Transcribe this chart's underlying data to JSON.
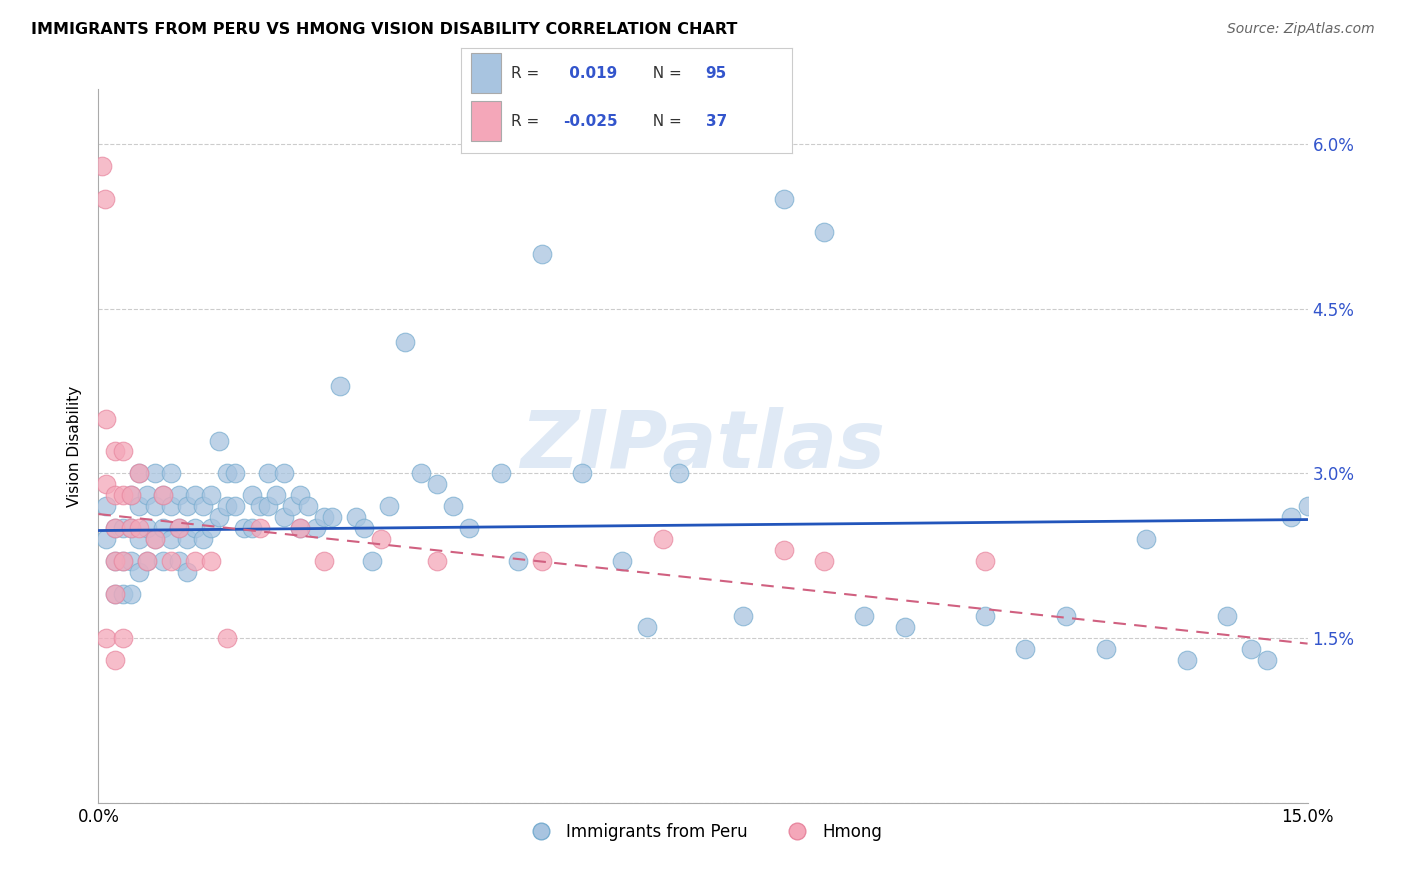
{
  "title": "IMMIGRANTS FROM PERU VS HMONG VISION DISABILITY CORRELATION CHART",
  "source": "Source: ZipAtlas.com",
  "xlabel_label": "Immigrants from Peru",
  "hmong_label": "Hmong",
  "ylabel": "Vision Disability",
  "xlim": [
    0.0,
    0.15
  ],
  "ylim": [
    0.0,
    0.065
  ],
  "xticks": [
    0.0,
    0.03,
    0.06,
    0.09,
    0.12,
    0.15
  ],
  "yticks": [
    0.0,
    0.015,
    0.03,
    0.045,
    0.06
  ],
  "r_peru": 0.019,
  "n_peru": 95,
  "r_hmong": -0.025,
  "n_hmong": 37,
  "peru_color": "#a8c4e0",
  "peru_edge_color": "#7aaed0",
  "peru_line_color": "#2255bb",
  "hmong_color": "#f4a7b9",
  "hmong_edge_color": "#e888a0",
  "hmong_line_color": "#d06080",
  "watermark": "ZIPatlas",
  "grid_color": "#cccccc",
  "peru_scatter_x": [
    0.001,
    0.001,
    0.002,
    0.002,
    0.002,
    0.003,
    0.003,
    0.003,
    0.004,
    0.004,
    0.004,
    0.004,
    0.005,
    0.005,
    0.005,
    0.005,
    0.006,
    0.006,
    0.006,
    0.007,
    0.007,
    0.007,
    0.008,
    0.008,
    0.008,
    0.009,
    0.009,
    0.009,
    0.01,
    0.01,
    0.01,
    0.011,
    0.011,
    0.011,
    0.012,
    0.012,
    0.013,
    0.013,
    0.014,
    0.014,
    0.015,
    0.015,
    0.016,
    0.016,
    0.017,
    0.017,
    0.018,
    0.019,
    0.019,
    0.02,
    0.021,
    0.021,
    0.022,
    0.023,
    0.023,
    0.024,
    0.025,
    0.025,
    0.026,
    0.027,
    0.028,
    0.029,
    0.03,
    0.032,
    0.033,
    0.034,
    0.036,
    0.038,
    0.04,
    0.042,
    0.044,
    0.046,
    0.05,
    0.052,
    0.055,
    0.06,
    0.065,
    0.068,
    0.072,
    0.08,
    0.085,
    0.09,
    0.095,
    0.1,
    0.11,
    0.115,
    0.12,
    0.125,
    0.13,
    0.135,
    0.14,
    0.143,
    0.145,
    0.148,
    0.15
  ],
  "peru_scatter_y": [
    0.027,
    0.024,
    0.025,
    0.022,
    0.019,
    0.025,
    0.022,
    0.019,
    0.028,
    0.025,
    0.022,
    0.019,
    0.03,
    0.027,
    0.024,
    0.021,
    0.028,
    0.025,
    0.022,
    0.03,
    0.027,
    0.024,
    0.028,
    0.025,
    0.022,
    0.03,
    0.027,
    0.024,
    0.028,
    0.025,
    0.022,
    0.027,
    0.024,
    0.021,
    0.028,
    0.025,
    0.027,
    0.024,
    0.028,
    0.025,
    0.033,
    0.026,
    0.03,
    0.027,
    0.03,
    0.027,
    0.025,
    0.028,
    0.025,
    0.027,
    0.03,
    0.027,
    0.028,
    0.03,
    0.026,
    0.027,
    0.028,
    0.025,
    0.027,
    0.025,
    0.026,
    0.026,
    0.038,
    0.026,
    0.025,
    0.022,
    0.027,
    0.042,
    0.03,
    0.029,
    0.027,
    0.025,
    0.03,
    0.022,
    0.05,
    0.03,
    0.022,
    0.016,
    0.03,
    0.017,
    0.055,
    0.052,
    0.017,
    0.016,
    0.017,
    0.014,
    0.017,
    0.014,
    0.024,
    0.013,
    0.017,
    0.014,
    0.013,
    0.026,
    0.027
  ],
  "hmong_scatter_x": [
    0.0005,
    0.0008,
    0.001,
    0.001,
    0.001,
    0.002,
    0.002,
    0.002,
    0.002,
    0.002,
    0.002,
    0.003,
    0.003,
    0.003,
    0.003,
    0.004,
    0.004,
    0.005,
    0.005,
    0.006,
    0.007,
    0.008,
    0.009,
    0.01,
    0.012,
    0.014,
    0.016,
    0.02,
    0.025,
    0.028,
    0.035,
    0.042,
    0.055,
    0.07,
    0.085,
    0.09,
    0.11
  ],
  "hmong_scatter_y": [
    0.058,
    0.055,
    0.035,
    0.029,
    0.015,
    0.032,
    0.028,
    0.025,
    0.022,
    0.019,
    0.013,
    0.032,
    0.028,
    0.022,
    0.015,
    0.028,
    0.025,
    0.03,
    0.025,
    0.022,
    0.024,
    0.028,
    0.022,
    0.025,
    0.022,
    0.022,
    0.015,
    0.025,
    0.025,
    0.022,
    0.024,
    0.022,
    0.022,
    0.024,
    0.023,
    0.022,
    0.022
  ],
  "peru_trend_x": [
    0.0,
    0.15
  ],
  "peru_trend_y": [
    0.0248,
    0.0258
  ],
  "hmong_trend_x": [
    0.0,
    0.15
  ],
  "hmong_trend_y": [
    0.0263,
    0.0145
  ]
}
